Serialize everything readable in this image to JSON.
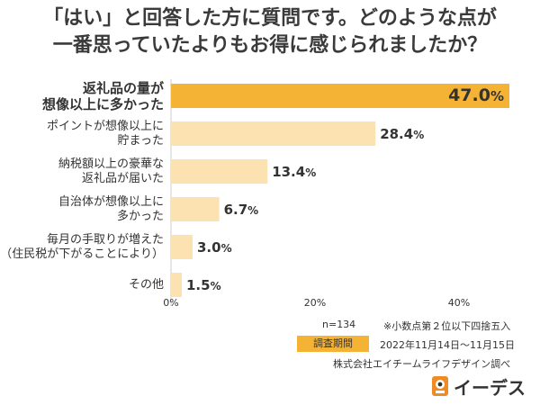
{
  "title": {
    "line1": "「はい」と回答した方に質問です。どのような点が",
    "line2": "一番思っていたよりもお得に感じられましたか？"
  },
  "chart_data": {
    "type": "bar",
    "orientation": "horizontal",
    "categories": [
      [
        "返礼品の量が",
        "想像以上に多かった"
      ],
      [
        "ポイントが想像以上に",
        "貯まった"
      ],
      [
        "納税額以上の豪華な",
        "返礼品が届いた"
      ],
      [
        "自治体が想像以上に",
        "多かった"
      ],
      [
        "毎月の手取りが増えた",
        "（住民税が下がることにより）"
      ],
      [
        "その他"
      ]
    ],
    "values": [
      47.0,
      28.4,
      13.4,
      6.7,
      3.0,
      1.5
    ],
    "value_labels": [
      "47.0",
      "28.4",
      "13.4",
      "6.7",
      "3.0",
      "1.5"
    ],
    "value_suffix": "%",
    "xlim": [
      0,
      50
    ],
    "xticks": [
      0,
      20,
      40
    ],
    "xtick_labels": [
      "0%",
      "20%",
      "40%"
    ],
    "highlight_index": 0,
    "colors": {
      "highlight": "#f5b335",
      "normal": "#fbe2b0",
      "axis": "#cccccc"
    }
  },
  "notes": {
    "n": "n=134",
    "rounding": "※小数点第２位以下四捨五入",
    "period_label": "調査期間",
    "period": "2022年11月14日〜11月15日",
    "source": "株式会社エイチームライフデザイン調べ"
  },
  "logo": {
    "text": "イーデス",
    "icon": "edes-logo-icon"
  }
}
